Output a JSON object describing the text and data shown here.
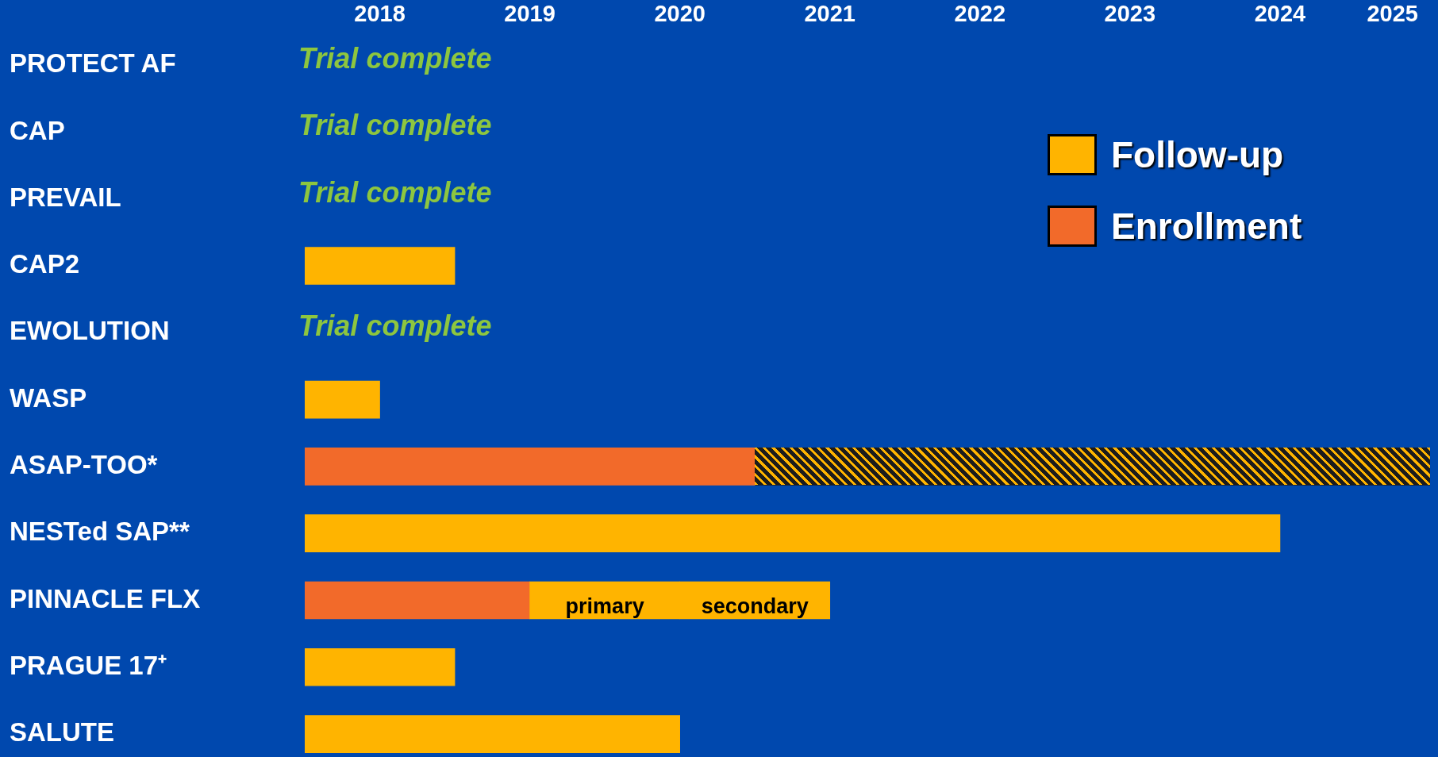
{
  "chart_data": {
    "type": "bar",
    "orientation": "horizontal",
    "legend": "top right",
    "grid": false,
    "categories": [
      "PROTECT AF",
      "CAP",
      "PREVAIL",
      "CAP2",
      "EWOLUTION",
      "WASP",
      "ASAP-TOO*",
      "NESTed SAP**",
      "PINNACLE FLX",
      "PRAGUE 17⁺",
      "SALUTE"
    ],
    "xlim": [
      2018,
      2025.5
    ],
    "xticks": [
      {
        "value": 2018.5,
        "label": "2018"
      },
      {
        "value": 2019.5,
        "label": "2019"
      },
      {
        "value": 2020.5,
        "label": "2020"
      },
      {
        "value": 2021.5,
        "label": "2021"
      },
      {
        "value": 2022.5,
        "label": "2022"
      },
      {
        "value": 2023.5,
        "label": "2023"
      },
      {
        "value": 2024.5,
        "label": "2024"
      },
      {
        "value": 2025.25,
        "label": "2025"
      }
    ],
    "series": [
      {
        "name": "Follow-up",
        "color": "#ffb400",
        "base": [
          null,
          null,
          null,
          2018,
          null,
          2018,
          null,
          2018,
          2019.5,
          2018,
          2018
        ],
        "values": [
          null,
          null,
          null,
          1,
          null,
          0.5,
          null,
          6.5,
          1,
          1,
          2.5
        ],
        "value_labels": [
          null,
          null,
          null,
          null,
          null,
          null,
          null,
          null,
          "primary",
          null,
          null
        ]
      },
      {
        "name": "Enrollment",
        "color": "#f26a2a",
        "base": [
          null,
          null,
          null,
          null,
          null,
          null,
          2018,
          null,
          2018,
          null,
          null
        ],
        "values": [
          null,
          null,
          null,
          null,
          null,
          null,
          3,
          null,
          1.5,
          null,
          null
        ]
      },
      {
        "color": "#ffb400",
        "base": [
          null,
          null,
          null,
          null,
          null,
          null,
          null,
          null,
          2020.5,
          null,
          null
        ],
        "values": [
          null,
          null,
          null,
          null,
          null,
          null,
          null,
          null,
          1,
          null,
          null
        ],
        "value_labels": [
          null,
          null,
          null,
          null,
          null,
          null,
          null,
          null,
          "secondary",
          null,
          null
        ]
      },
      {
        "color": "#1c1c1c",
        "base": [
          null,
          null,
          null,
          null,
          null,
          null,
          2021,
          null,
          null,
          null,
          null
        ],
        "values": [
          null,
          null,
          null,
          null,
          null,
          null,
          4.5,
          null,
          null,
          null,
          null
        ]
      }
    ],
    "annotations": [
      "Trial complete",
      "Trial complete",
      "Trial complete",
      "Trial complete"
    ]
  }
}
